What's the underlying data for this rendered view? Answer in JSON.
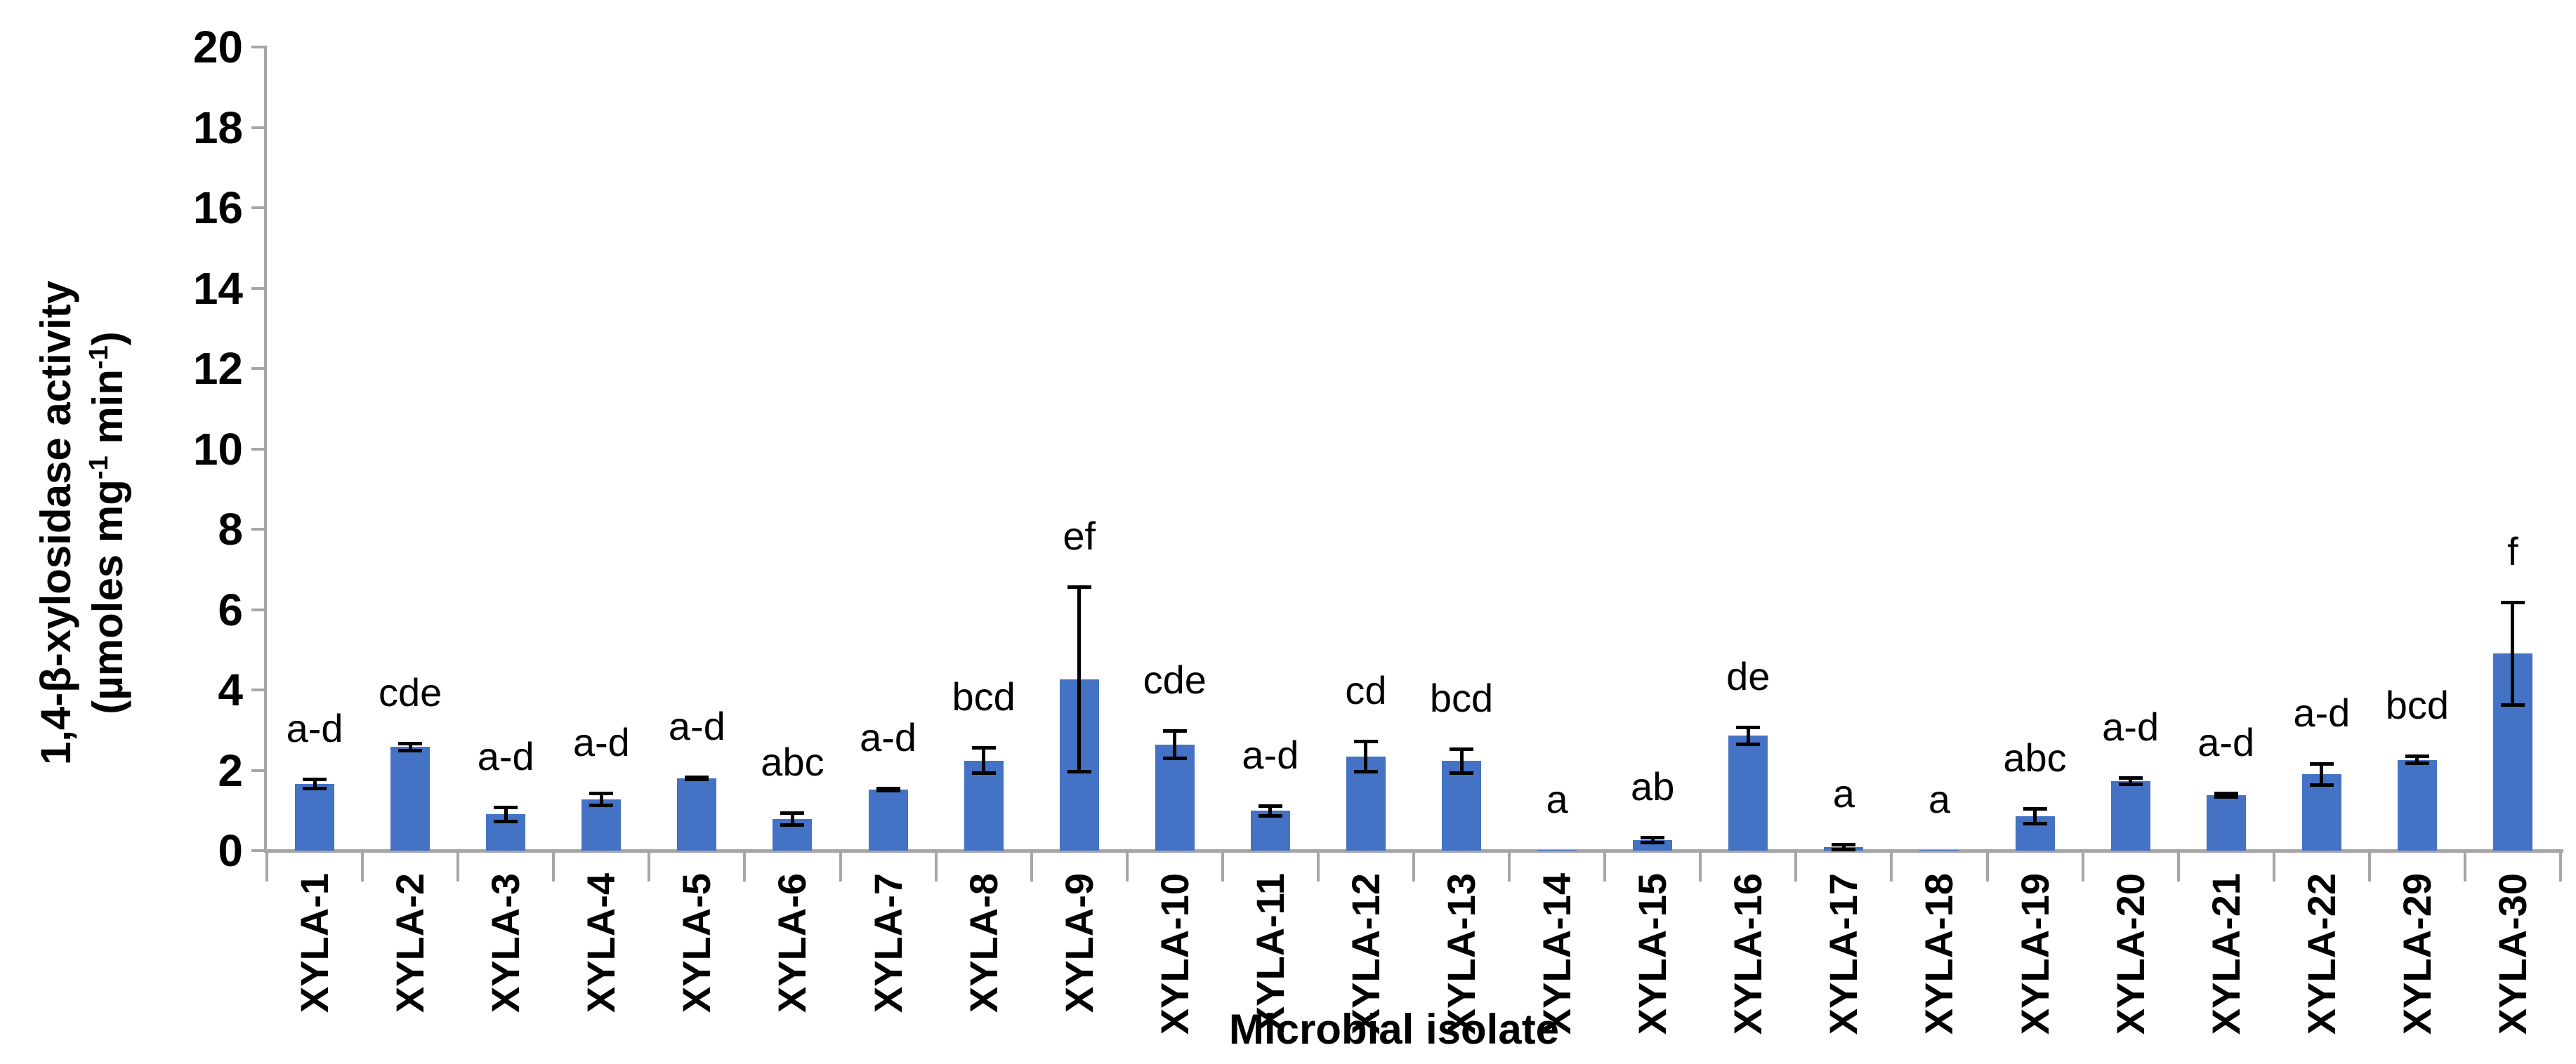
{
  "chart_data": {
    "type": "bar",
    "title": "",
    "xlabel": "Microbial isolate",
    "ylabel": "1,4-β-xylosidase activity (µmoles mg-1 min-1)",
    "ylabel_line1": "1,4-β-xylosidase activity",
    "ylabel_units_parts": [
      "(µmoles mg",
      "-1",
      " min",
      "-1",
      ")"
    ],
    "ymin": 0,
    "ymax": 20,
    "ytick_step": 2,
    "yticks": [
      0,
      2,
      4,
      6,
      8,
      10,
      12,
      14,
      16,
      18,
      20
    ],
    "grid": false,
    "legend": false,
    "bar_color": "#4472C4",
    "axis_color": "#A6A6A6",
    "error_bar_color": "#000000",
    "categories": [
      "XYLA-1",
      "XYLA-2",
      "XYLA-3",
      "XYLA-4",
      "XYLA-5",
      "XYLA-6",
      "XYLA-7",
      "XYLA-8",
      "XYLA-9",
      "XYLA-10",
      "XYLA-11",
      "XYLA-12",
      "XYLA-13",
      "XYLA-14",
      "XYLA-15",
      "XYLA-16",
      "XYLA-17",
      "XYLA-18",
      "XYLA-19",
      "XYLA-20",
      "XYLA-21",
      "XYLA-22",
      "XYLA-29",
      "XYLA-30"
    ],
    "values": [
      1.66,
      2.58,
      0.9,
      1.27,
      1.8,
      0.79,
      1.52,
      2.24,
      4.26,
      2.64,
      0.99,
      2.34,
      2.23,
      0.02,
      0.26,
      2.86,
      0.08,
      0.02,
      0.85,
      1.73,
      1.38,
      1.9,
      2.26,
      4.9
    ],
    "errors": [
      0.12,
      0.1,
      0.18,
      0.16,
      0.04,
      0.16,
      0.04,
      0.32,
      2.3,
      0.35,
      0.13,
      0.39,
      0.3,
      0,
      0.07,
      0.22,
      0.07,
      0,
      0.19,
      0.08,
      0.06,
      0.27,
      0.1,
      1.28
    ],
    "sig_letters": [
      "a-d",
      "cde",
      "a-d",
      "a-d",
      "a-d",
      "abc",
      "a-d",
      "bcd",
      "ef",
      "cde",
      "a-d",
      "cd",
      "bcd",
      "a",
      "ab",
      "de",
      "a",
      "a",
      "abc",
      "a-d",
      "a-d",
      "a-d",
      "bcd",
      "f"
    ]
  }
}
